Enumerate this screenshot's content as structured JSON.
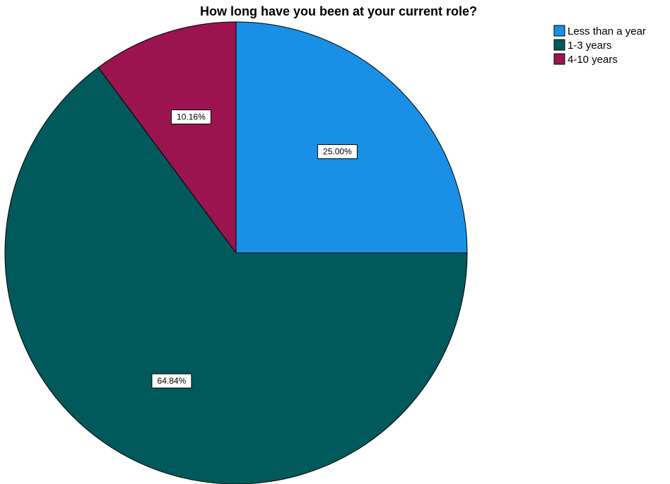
{
  "chart_data": {
    "type": "pie",
    "title": "How long have you been at your current role?",
    "categories": [
      "Less than a year",
      "1-3 years",
      "4-10 years"
    ],
    "values": [
      25.0,
      64.84,
      10.16
    ],
    "data_labels": [
      "25.00%",
      "64.84%",
      "10.16%"
    ],
    "colors": [
      "#1a8fe6",
      "#00595a",
      "#9b1450"
    ],
    "start_angle_deg": 0,
    "direction": "clockwise",
    "legend_position": "top-right",
    "grid": false
  }
}
